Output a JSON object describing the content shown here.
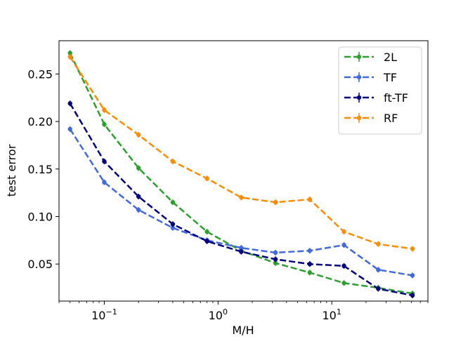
{
  "chart_data": {
    "type": "line",
    "xscale": "log",
    "xlim": [
      0.04,
      70
    ],
    "ylim": [
      0.011,
      0.285
    ],
    "xlabel": "M/H",
    "ylabel": "test error",
    "xticks": [
      {
        "value": 0.1,
        "base": "10",
        "exp": "−1"
      },
      {
        "value": 1,
        "base": "10",
        "exp": "0"
      },
      {
        "value": 10,
        "base": "10",
        "exp": "1"
      }
    ],
    "yticks": [
      {
        "value": 0.05,
        "label": "0.05"
      },
      {
        "value": 0.1,
        "label": "0.10"
      },
      {
        "value": 0.15,
        "label": "0.15"
      },
      {
        "value": 0.2,
        "label": "0.20"
      },
      {
        "value": 0.25,
        "label": "0.25"
      }
    ],
    "x": [
      0.05,
      0.1,
      0.2,
      0.4,
      0.8,
      1.6,
      3.2,
      6.4,
      12.8,
      25.6,
      51.2
    ],
    "legend_position": "upper right",
    "grid": false,
    "series": [
      {
        "name": "2L",
        "color": "#2ca02c",
        "marker": "circle",
        "linestyle": "dashed",
        "values": [
          0.272,
          0.197,
          0.151,
          0.115,
          0.084,
          0.064,
          0.051,
          0.041,
          0.03,
          0.025,
          0.019
        ]
      },
      {
        "name": "TF",
        "color": "#4169e1",
        "marker": "circle",
        "linestyle": "dashed",
        "values": [
          0.192,
          0.136,
          0.107,
          0.088,
          0.075,
          0.067,
          0.062,
          0.064,
          0.07,
          0.044,
          0.038
        ]
      },
      {
        "name": "ft-TF",
        "color": "#000080",
        "marker": "circle",
        "linestyle": "dashed",
        "values": [
          0.219,
          0.158,
          0.121,
          0.092,
          0.074,
          0.063,
          0.055,
          0.05,
          0.048,
          0.024,
          0.017
        ]
      },
      {
        "name": "RF",
        "color": "#ff8c00",
        "marker": "circle",
        "linestyle": "dashed",
        "values": [
          0.268,
          0.212,
          0.186,
          0.158,
          0.14,
          0.12,
          0.115,
          0.118,
          0.084,
          0.071,
          0.066
        ]
      }
    ]
  }
}
